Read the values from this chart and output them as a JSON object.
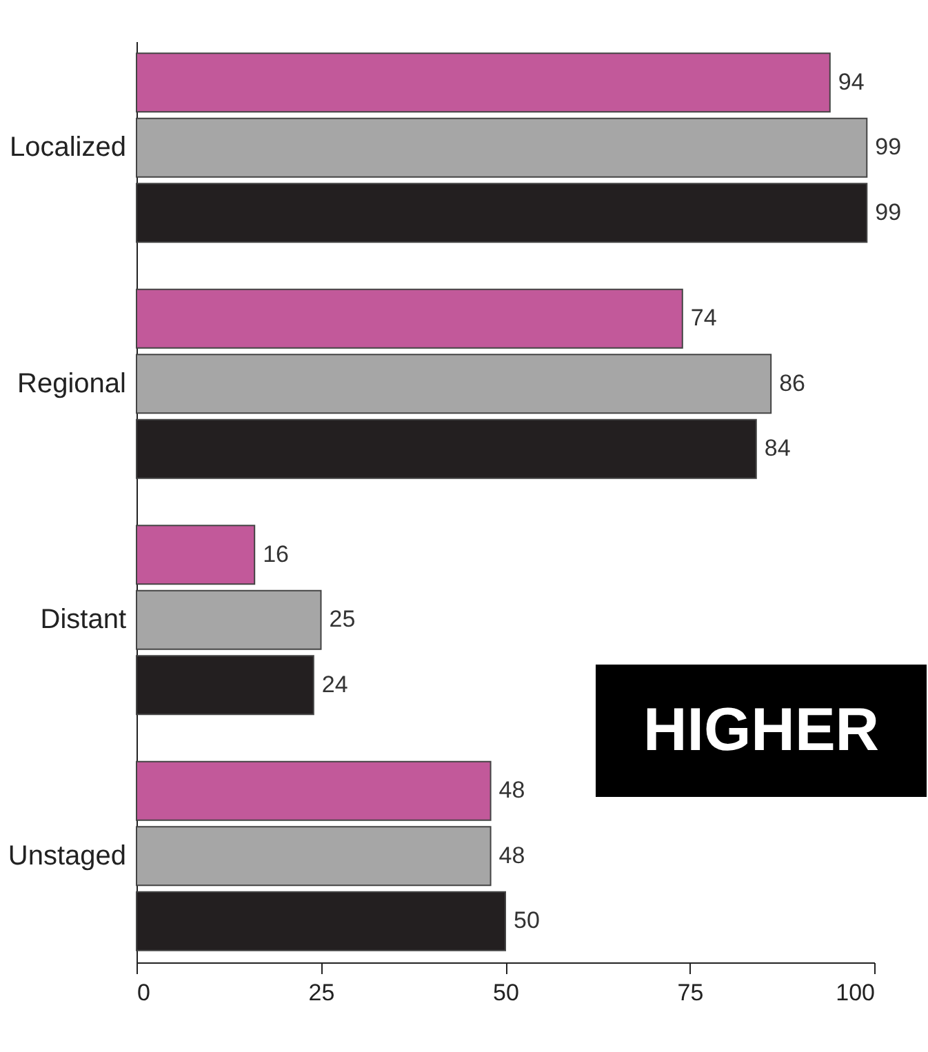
{
  "chart_data": {
    "type": "bar",
    "orientation": "horizontal",
    "categories": [
      "Localized",
      "Regional",
      "Distant",
      "Unstaged"
    ],
    "series": [
      {
        "color": "#c2599a",
        "values": [
          94,
          74,
          16,
          48
        ]
      },
      {
        "color": "#a6a6a6",
        "values": [
          99,
          86,
          25,
          48
        ]
      },
      {
        "color": "#231f20",
        "values": [
          99,
          84,
          24,
          50
        ]
      }
    ],
    "xlim": [
      0,
      100
    ],
    "xticks": [
      0,
      25,
      50,
      75,
      100
    ],
    "grid": false,
    "legend": false,
    "data_labels": true,
    "annotations": [
      "HIGHER"
    ]
  }
}
